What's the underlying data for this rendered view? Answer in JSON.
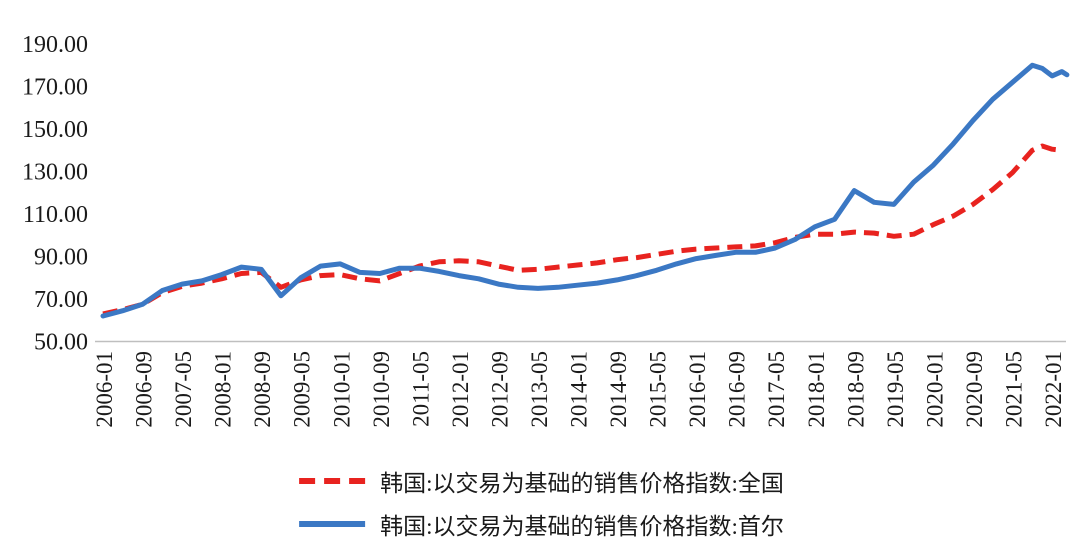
{
  "chart_data": {
    "type": "line",
    "grid": false,
    "legend_position": "bottom",
    "background_color": "#ffffff",
    "axis_line_color": "#bfbfbf",
    "text_color": "#1a1a1a",
    "y_axis": {
      "min": 50,
      "max": 190,
      "step": 20,
      "tick_labels": [
        "190.00",
        "170.00",
        "150.00",
        "130.00",
        "110.00",
        "90.00",
        "70.00",
        "50.00"
      ]
    },
    "x_axis": {
      "start": "2006-01",
      "end": "2022-04",
      "label_interval_months": 8,
      "tick_labels": [
        "2006-01",
        "2006-09",
        "2007-05",
        "2008-01",
        "2008-09",
        "2009-05",
        "2010-01",
        "2010-09",
        "2011-05",
        "2012-01",
        "2012-09",
        "2013-05",
        "2014-01",
        "2014-09",
        "2015-05",
        "2016-01",
        "2016-09",
        "2017-05",
        "2018-01",
        "2018-09",
        "2019-05",
        "2020-01",
        "2020-09",
        "2021-05",
        "2022-01"
      ]
    },
    "series": [
      {
        "name": "韩国:以交易为基础的销售价格指数:全国",
        "color": "#e8231f",
        "style": "dashed",
        "points": [
          [
            "2006-01",
            63
          ],
          [
            "2006-05",
            65
          ],
          [
            "2006-09",
            67.5
          ],
          [
            "2007-01",
            73
          ],
          [
            "2007-05",
            76
          ],
          [
            "2007-09",
            77.5
          ],
          [
            "2008-01",
            79.5
          ],
          [
            "2008-05",
            82
          ],
          [
            "2008-09",
            82.5
          ],
          [
            "2009-01",
            75.5
          ],
          [
            "2009-05",
            79
          ],
          [
            "2009-09",
            81
          ],
          [
            "2010-01",
            81.5
          ],
          [
            "2010-05",
            79.5
          ],
          [
            "2010-09",
            78.5
          ],
          [
            "2011-01",
            82
          ],
          [
            "2011-05",
            85.5
          ],
          [
            "2011-09",
            87.5
          ],
          [
            "2012-01",
            88
          ],
          [
            "2012-05",
            87.5
          ],
          [
            "2012-09",
            85.5
          ],
          [
            "2013-01",
            83.5
          ],
          [
            "2013-05",
            84
          ],
          [
            "2013-09",
            85
          ],
          [
            "2014-01",
            86
          ],
          [
            "2014-05",
            87
          ],
          [
            "2014-09",
            88.5
          ],
          [
            "2015-01",
            89.5
          ],
          [
            "2015-05",
            91
          ],
          [
            "2015-09",
            92.5
          ],
          [
            "2016-01",
            93.5
          ],
          [
            "2016-05",
            94
          ],
          [
            "2016-09",
            94.5
          ],
          [
            "2017-01",
            95
          ],
          [
            "2017-05",
            96.5
          ],
          [
            "2017-09",
            99
          ],
          [
            "2018-01",
            100.5
          ],
          [
            "2018-05",
            100.5
          ],
          [
            "2018-09",
            101.5
          ],
          [
            "2019-01",
            101
          ],
          [
            "2019-05",
            99.5
          ],
          [
            "2019-09",
            100.5
          ],
          [
            "2020-01",
            105
          ],
          [
            "2020-05",
            109
          ],
          [
            "2020-09",
            114.5
          ],
          [
            "2021-01",
            121.5
          ],
          [
            "2021-05",
            129.5
          ],
          [
            "2021-09",
            140
          ],
          [
            "2021-11",
            142
          ],
          [
            "2022-01",
            140.5
          ],
          [
            "2022-03",
            140
          ]
        ]
      },
      {
        "name": "韩国:以交易为基础的销售价格指数:首尔",
        "color": "#3b78c4",
        "style": "solid",
        "points": [
          [
            "2006-01",
            62
          ],
          [
            "2006-05",
            64.5
          ],
          [
            "2006-09",
            67.5
          ],
          [
            "2007-01",
            74
          ],
          [
            "2007-05",
            77
          ],
          [
            "2007-09",
            78.5
          ],
          [
            "2008-01",
            81.5
          ],
          [
            "2008-05",
            85
          ],
          [
            "2008-09",
            84
          ],
          [
            "2009-01",
            71.5
          ],
          [
            "2009-05",
            80
          ],
          [
            "2009-09",
            85.5
          ],
          [
            "2010-01",
            86.5
          ],
          [
            "2010-05",
            82.5
          ],
          [
            "2010-09",
            82
          ],
          [
            "2011-01",
            84.5
          ],
          [
            "2011-05",
            84.5
          ],
          [
            "2011-09",
            83
          ],
          [
            "2012-01",
            81
          ],
          [
            "2012-05",
            79.5
          ],
          [
            "2012-09",
            77
          ],
          [
            "2013-01",
            75.5
          ],
          [
            "2013-05",
            75
          ],
          [
            "2013-09",
            75.5
          ],
          [
            "2014-01",
            76.5
          ],
          [
            "2014-05",
            77.5
          ],
          [
            "2014-09",
            79
          ],
          [
            "2015-01",
            81
          ],
          [
            "2015-05",
            83.5
          ],
          [
            "2015-09",
            86.5
          ],
          [
            "2016-01",
            89
          ],
          [
            "2016-05",
            90.5
          ],
          [
            "2016-09",
            92
          ],
          [
            "2017-01",
            92
          ],
          [
            "2017-05",
            94
          ],
          [
            "2017-09",
            98
          ],
          [
            "2018-01",
            104
          ],
          [
            "2018-05",
            107.5
          ],
          [
            "2018-09",
            121
          ],
          [
            "2019-01",
            115.5
          ],
          [
            "2019-05",
            114.5
          ],
          [
            "2019-09",
            125
          ],
          [
            "2020-01",
            133
          ],
          [
            "2020-05",
            143
          ],
          [
            "2020-09",
            154
          ],
          [
            "2021-01",
            164
          ],
          [
            "2021-05",
            172
          ],
          [
            "2021-09",
            180
          ],
          [
            "2021-11",
            178.5
          ],
          [
            "2022-01",
            175
          ],
          [
            "2022-03",
            177
          ],
          [
            "2022-04",
            175.5
          ]
        ]
      }
    ]
  },
  "legend": {
    "items": [
      {
        "label": "韩国:以交易为基础的销售价格指数:全国"
      },
      {
        "label": "韩国:以交易为基础的销售价格指数:首尔"
      }
    ]
  }
}
